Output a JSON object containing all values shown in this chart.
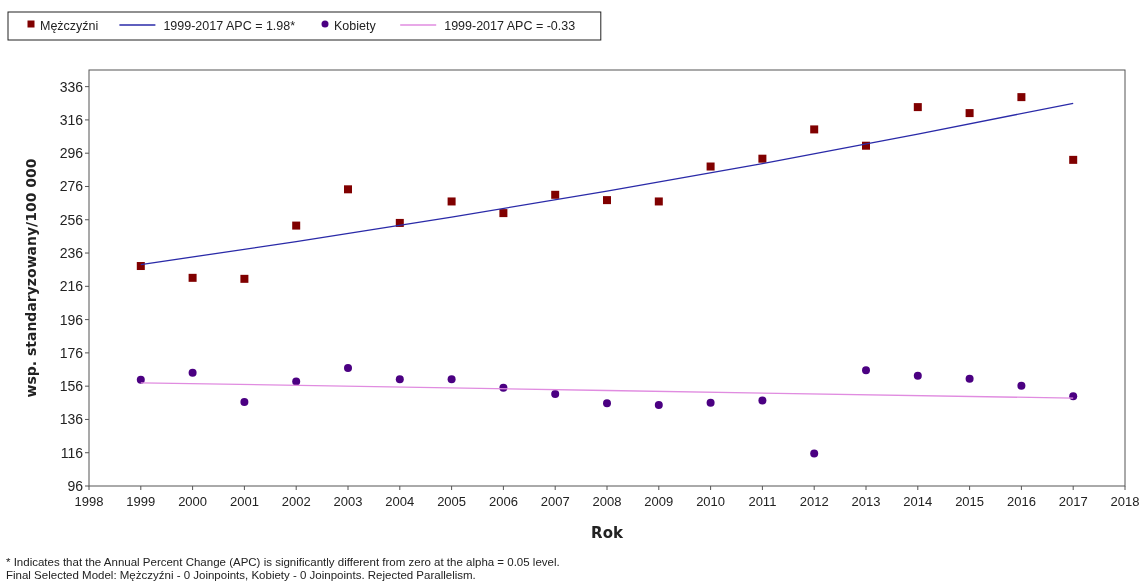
{
  "chart_data": {
    "type": "scatter",
    "xlabel": "Rok",
    "ylabel": "wsp. standaryzowany/100 000",
    "x": [
      1999,
      2000,
      2001,
      2002,
      2003,
      2004,
      2005,
      2006,
      2007,
      2008,
      2009,
      2010,
      2011,
      2012,
      2013,
      2014,
      2015,
      2016,
      2017
    ],
    "series": [
      {
        "name": "Mężczyźni",
        "marker": "square",
        "color": "#800000",
        "values": [
          228.2,
          221.1,
          220.5,
          252.5,
          274.3,
          254.1,
          267.0,
          260.0,
          271.0,
          267.8,
          267.0,
          288.0,
          292.7,
          310.3,
          300.5,
          323.7,
          320.1,
          329.7,
          292.0
        ]
      },
      {
        "name": "1999-2017 APC = 1.98*",
        "type": "line",
        "marker": "none",
        "color": "#2a2aa8",
        "x": [
          1999,
          2002,
          2005,
          2008,
          2011,
          2014,
          2017
        ],
        "values": [
          229.0,
          242.9,
          257.6,
          273.2,
          289.8,
          307.4,
          326.0
        ]
      },
      {
        "name": "Kobiety",
        "marker": "circle",
        "color": "#4b0082",
        "values": [
          159.8,
          164.0,
          146.5,
          158.8,
          166.9,
          160.2,
          160.2,
          155.0,
          151.3,
          145.8,
          144.7,
          146.1,
          147.4,
          115.5,
          165.5,
          162.3,
          160.4,
          156.3,
          149.9
        ]
      },
      {
        "name": "1999-2017 APC = -0.33",
        "type": "line",
        "marker": "none",
        "color": "#e08ce0",
        "x": [
          1999,
          2008,
          2017
        ],
        "values": [
          158.0,
          153.4,
          148.8
        ]
      }
    ],
    "xlim": [
      1998,
      2018
    ],
    "xticks": [
      1998,
      1999,
      2000,
      2001,
      2002,
      2003,
      2004,
      2005,
      2006,
      2007,
      2008,
      2009,
      2010,
      2011,
      2012,
      2013,
      2014,
      2015,
      2016,
      2017,
      2018
    ],
    "ylim": [
      96,
      346
    ],
    "yticks": [
      96,
      116,
      136,
      156,
      176,
      196,
      216,
      236,
      256,
      276,
      296,
      316,
      336
    ],
    "legend": "top left",
    "annotations": [
      "* Indicates that the Annual Percent Change (APC) is significantly different from zero at the alpha = 0.05 level.",
      "Final Selected Model: Mężczyźni - 0 Joinpoints, Kobiety - 0 Joinpoints. Rejected Parallelism."
    ]
  }
}
